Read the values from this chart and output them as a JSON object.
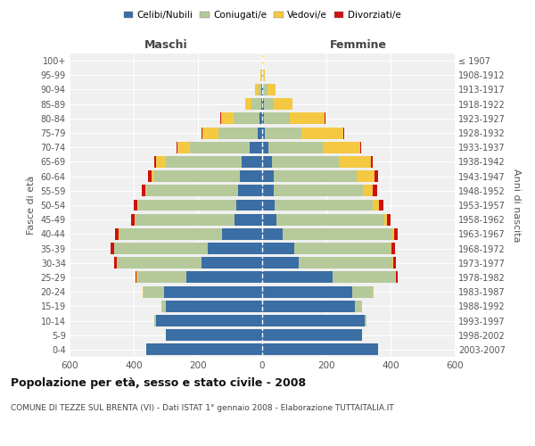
{
  "age_groups": [
    "0-4",
    "5-9",
    "10-14",
    "15-19",
    "20-24",
    "25-29",
    "30-34",
    "35-39",
    "40-44",
    "45-49",
    "50-54",
    "55-59",
    "60-64",
    "65-69",
    "70-74",
    "75-79",
    "80-84",
    "85-89",
    "90-94",
    "95-99",
    "100+"
  ],
  "birth_years": [
    "2003-2007",
    "1998-2002",
    "1993-1997",
    "1988-1992",
    "1983-1987",
    "1978-1982",
    "1973-1977",
    "1968-1972",
    "1963-1967",
    "1958-1962",
    "1953-1957",
    "1948-1952",
    "1943-1947",
    "1938-1942",
    "1933-1937",
    "1928-1932",
    "1923-1927",
    "1918-1922",
    "1913-1917",
    "1908-1912",
    "≤ 1907"
  ],
  "colors": {
    "celibi": "#3a6ea5",
    "coniugati": "#b5c99a",
    "vedovi": "#f5c842",
    "divorziati": "#cc1111"
  },
  "males": {
    "celibi": [
      360,
      300,
      330,
      300,
      305,
      235,
      190,
      170,
      125,
      85,
      80,
      75,
      70,
      65,
      40,
      15,
      8,
      3,
      2,
      1,
      1
    ],
    "coniugati": [
      0,
      0,
      5,
      15,
      65,
      155,
      260,
      290,
      320,
      310,
      305,
      285,
      265,
      235,
      185,
      120,
      80,
      30,
      10,
      2,
      0
    ],
    "vedovi": [
      0,
      0,
      0,
      0,
      1,
      1,
      2,
      2,
      2,
      3,
      5,
      5,
      10,
      30,
      40,
      50,
      40,
      20,
      10,
      2,
      0
    ],
    "divorziati": [
      0,
      0,
      0,
      0,
      2,
      4,
      8,
      10,
      12,
      10,
      10,
      10,
      10,
      5,
      3,
      3,
      2,
      0,
      0,
      0,
      0
    ]
  },
  "females": {
    "nubili": [
      360,
      310,
      320,
      290,
      280,
      220,
      115,
      100,
      65,
      45,
      40,
      35,
      35,
      30,
      20,
      8,
      5,
      5,
      2,
      1,
      1
    ],
    "coniugate": [
      0,
      0,
      5,
      20,
      65,
      195,
      290,
      300,
      340,
      335,
      305,
      280,
      260,
      210,
      170,
      115,
      80,
      30,
      15,
      3,
      0
    ],
    "vedove": [
      0,
      0,
      0,
      0,
      1,
      2,
      3,
      3,
      5,
      10,
      20,
      30,
      55,
      100,
      115,
      130,
      110,
      60,
      25,
      5,
      2
    ],
    "divorziate": [
      0,
      0,
      0,
      0,
      2,
      5,
      8,
      10,
      12,
      10,
      12,
      12,
      12,
      5,
      3,
      3,
      2,
      0,
      0,
      0,
      0
    ]
  },
  "title": "Popolazione per età, sesso e stato civile - 2008",
  "subtitle": "COMUNE DI TEZZE SUL BRENTA (VI) - Dati ISTAT 1° gennaio 2008 - Elaborazione TUTTAITALIA.IT",
  "xlabel_left": "Maschi",
  "xlabel_right": "Femmine",
  "ylabel_left": "Fasce di età",
  "ylabel_right": "Anni di nascita",
  "xlim": 600,
  "legend_labels": [
    "Celibi/Nubili",
    "Coniugati/e",
    "Vedovi/e",
    "Divorziati/e"
  ],
  "legend_colors": [
    "#3a6ea5",
    "#b5c99a",
    "#f5c842",
    "#cc1111"
  ],
  "bg_color": "#ffffff",
  "plot_bg": "#f0f0f0",
  "bar_height": 0.8
}
